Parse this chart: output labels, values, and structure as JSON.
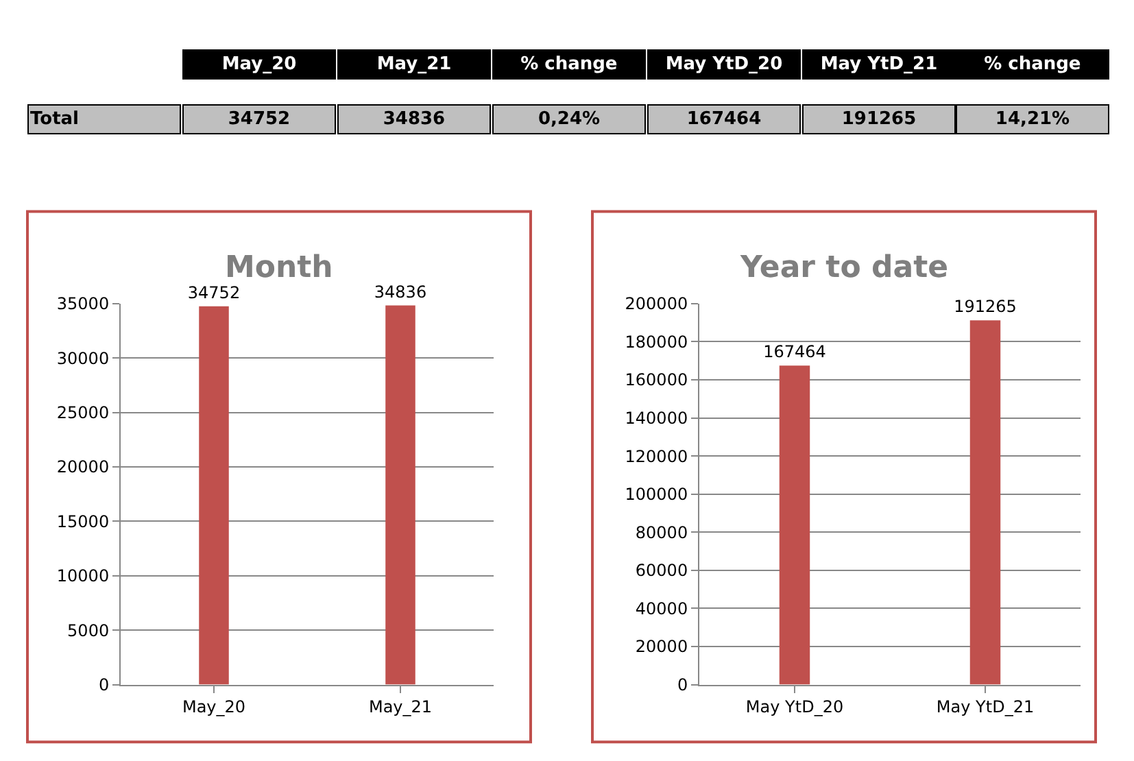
{
  "chart_data": [
    {
      "type": "other",
      "annotations": [
        "May_20",
        "May_21",
        "% change",
        "May YtD_20",
        "May YtD_21",
        "% change",
        "Total",
        "34752",
        "34836",
        "0,24%",
        "167464",
        "191265",
        "14,21%"
      ]
    },
    {
      "type": "bar",
      "title": "Month",
      "categories": [
        "May_20",
        "May_21"
      ],
      "values": [
        34752,
        34836
      ],
      "color": "#c0504d",
      "ylim": [
        0,
        35000
      ],
      "yticks": [
        0,
        5000,
        10000,
        15000,
        20000,
        25000,
        30000,
        35000
      ],
      "grid": "y",
      "legend": false,
      "data_labels": true
    },
    {
      "type": "bar",
      "title": "Year to date",
      "categories": [
        "May YtD_20",
        "May YtD_21"
      ],
      "values": [
        167464,
        191265
      ],
      "color": "#c0504d",
      "ylim": [
        0,
        200000
      ],
      "yticks": [
        0,
        20000,
        40000,
        60000,
        80000,
        100000,
        120000,
        140000,
        160000,
        180000,
        200000
      ],
      "grid": "y",
      "legend": false,
      "data_labels": true
    }
  ]
}
